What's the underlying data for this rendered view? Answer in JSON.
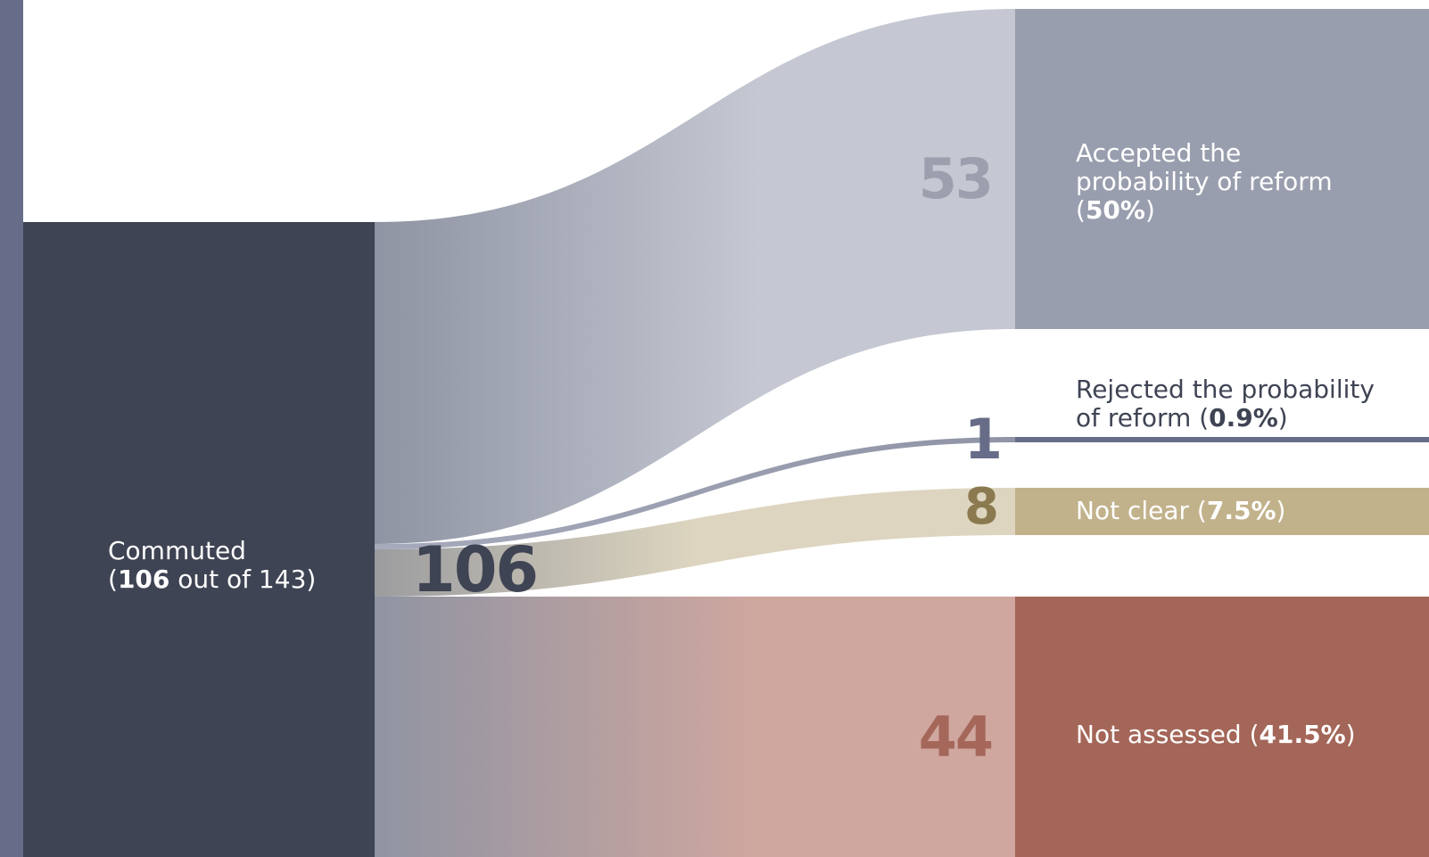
{
  "source": {
    "label_line1": "Commuted",
    "label_open": "(",
    "value": "106",
    "label_rest": " out of 143)",
    "total_value": 106,
    "total_of": 143,
    "count_label": "106",
    "color": "#3f4454"
  },
  "targets": [
    {
      "key": "accepted",
      "label_line1": "Accepted the",
      "label_line2": "probability of reform",
      "pct": "50%",
      "count": "53",
      "value": 53,
      "node_color": "#999eae",
      "flow_color": "#c5c8d2",
      "count_color": "#9ca0ae"
    },
    {
      "key": "rejected",
      "label_line1": "Rejected the probability",
      "label_line2_pre": "of reform (",
      "pct": "0.9%",
      "count": "1",
      "value": 1,
      "node_color": "#676d88",
      "flow_color": "#8f94a6",
      "count_color": "#676d88"
    },
    {
      "key": "not_clear",
      "label_pre": "Not clear (",
      "pct": "7.5%",
      "count": "8",
      "value": 8,
      "node_color": "#c2b28c",
      "flow_color": "#ddd5bf",
      "count_color": "#8b7a4f"
    },
    {
      "key": "not_assessed",
      "label_pre": "Not assessed (",
      "pct": "41.5%",
      "count": "44",
      "value": 44,
      "node_color": "#a36658",
      "flow_color": "#cfa79f",
      "count_color": "#a5675a"
    }
  ],
  "sidebar_color": "#676d88"
}
